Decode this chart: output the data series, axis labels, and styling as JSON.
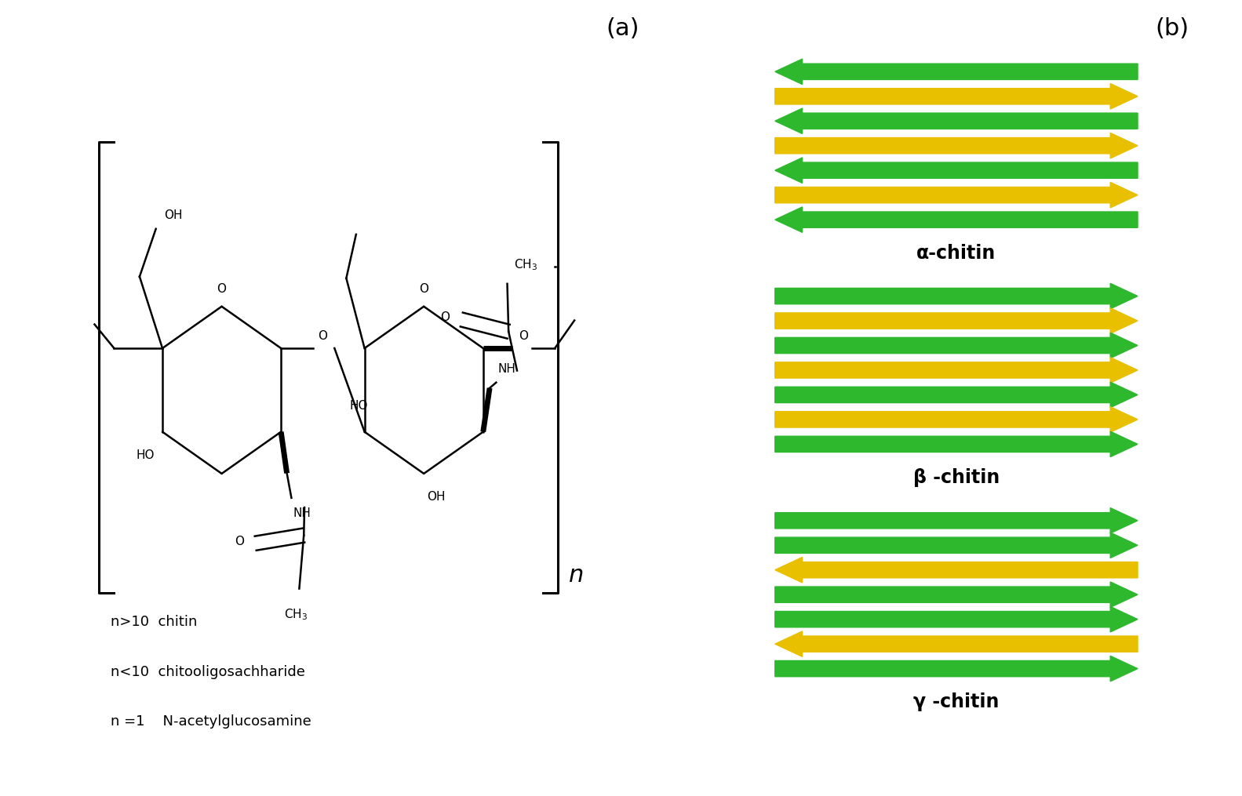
{
  "panel_a_label": "(a)",
  "panel_b_label": "(b)",
  "label_fontsize": 22,
  "green_color": "#2db82d",
  "yellow_color": "#e8c000",
  "alpha_arrows": [
    {
      "dir": "left",
      "color": "green"
    },
    {
      "dir": "right",
      "color": "yellow"
    },
    {
      "dir": "left",
      "color": "green"
    },
    {
      "dir": "right",
      "color": "yellow"
    },
    {
      "dir": "left",
      "color": "green"
    },
    {
      "dir": "right",
      "color": "yellow"
    },
    {
      "dir": "left",
      "color": "green"
    }
  ],
  "beta_arrows": [
    {
      "dir": "right",
      "color": "green"
    },
    {
      "dir": "right",
      "color": "yellow"
    },
    {
      "dir": "right",
      "color": "green"
    },
    {
      "dir": "right",
      "color": "yellow"
    },
    {
      "dir": "right",
      "color": "green"
    },
    {
      "dir": "right",
      "color": "yellow"
    },
    {
      "dir": "right",
      "color": "green"
    }
  ],
  "gamma_arrows": [
    {
      "dir": "right",
      "color": "green"
    },
    {
      "dir": "right",
      "color": "green"
    },
    {
      "dir": "left",
      "color": "yellow"
    },
    {
      "dir": "right",
      "color": "green"
    },
    {
      "dir": "right",
      "color": "green"
    },
    {
      "dir": "left",
      "color": "yellow"
    },
    {
      "dir": "right",
      "color": "green"
    }
  ],
  "alpha_label": "α-chitin",
  "beta_label": "β -chitin",
  "gamma_label": "γ -chitin",
  "chitin_label_fontsize": 16,
  "annotation_fontsize": 13,
  "bg_color": "#ffffff"
}
